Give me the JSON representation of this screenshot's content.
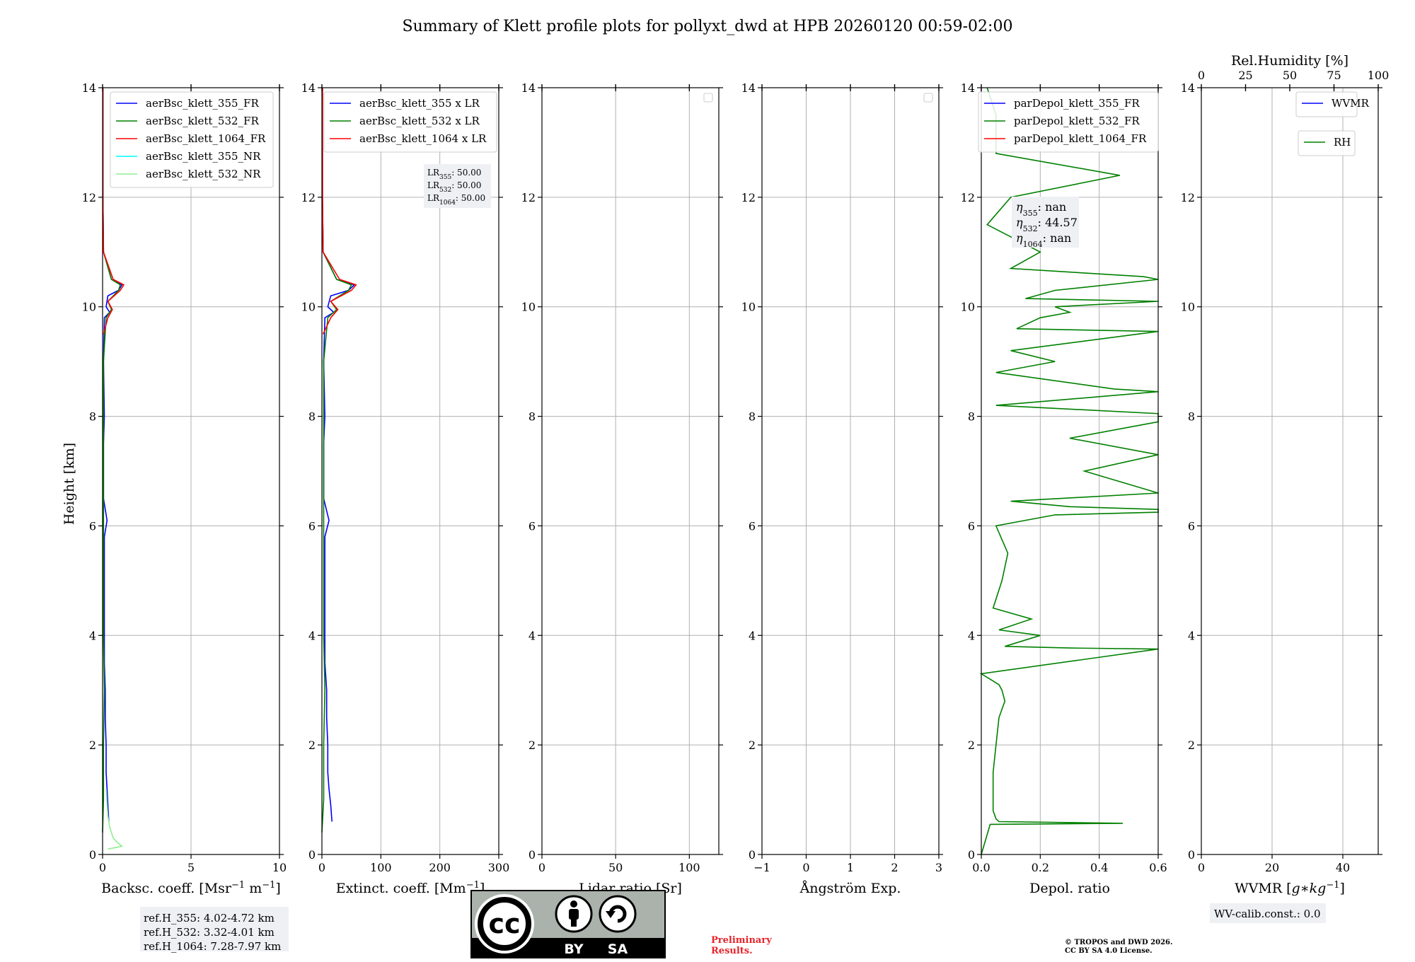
{
  "title": "Summary of Klett profile plots for pollyxt_dwd at HPB 20260120 00:59-02:00",
  "y_axis_label": "Height [km]",
  "rh_axis_label": "Rel.Humidity [%]",
  "colors": {
    "blue": "#0000ff",
    "green": "#008000",
    "red": "#ff0000",
    "cyan": "#00ffff",
    "lightgreen": "#90ee90",
    "grid": "#b0b0b0"
  },
  "info_boxes": {
    "ref_h": [
      "ref.H_355: 4.02-4.72 km",
      "ref.H_532: 3.32-4.01 km",
      "ref.H_1064: 7.28-7.97 km"
    ],
    "wv_calib": "WV-calib.const.: 0.0",
    "eta": {
      "sym": "η",
      "rows": [
        {
          "sub": "355",
          "val": ": nan"
        },
        {
          "sub": "532",
          "val": ": 44.57"
        },
        {
          "sub": "1064",
          "val": ": nan"
        }
      ]
    },
    "lr": {
      "base": "LR",
      "rows": [
        {
          "sub": "355",
          "val": ": 50.00"
        },
        {
          "sub": "532",
          "val": ": 50.00"
        },
        {
          "sub": "1064",
          "val": ": 50.00"
        }
      ]
    }
  },
  "license": {
    "badge": {
      "cc": "cc",
      "by": "BY",
      "sa": "SA"
    },
    "preliminary": [
      "Preliminary",
      "Results."
    ],
    "copyright": [
      "© TROPOS and DWD 2026.",
      "CC BY SA 4.0 License."
    ]
  },
  "chart_data": [
    {
      "type": "line",
      "xlabel": "Backsc. coeff. [Msr$^{-1}$ m$^{-1}$]",
      "xlabel_parts": {
        "base": "Backsc. coeff. [Msr",
        "sup1": "−1",
        "mid": " m",
        "sup2": "−1",
        "end": "]"
      },
      "xlim": [
        0,
        10
      ],
      "xticks": [
        0,
        5,
        10
      ],
      "ylim": [
        0,
        14
      ],
      "yticks": [
        0,
        2,
        4,
        6,
        8,
        10,
        12,
        14
      ],
      "legend": [
        "aerBsc_klett_355_FR",
        "aerBsc_klett_532_FR",
        "aerBsc_klett_1064_FR",
        "aerBsc_klett_355_NR",
        "aerBsc_klett_532_NR"
      ],
      "legend_colors": [
        "#0000ff",
        "#008000",
        "#ff0000",
        "#00ffff",
        "#90ee90"
      ],
      "series": [
        {
          "name": "aerBsc_klett_355_FR",
          "color": "#0000ff",
          "y": [
            0.6,
            0.9,
            1.2,
            1.5,
            2.0,
            2.5,
            3.0,
            3.5,
            4.0,
            5.0,
            5.8,
            6.1,
            6.5,
            7.5,
            8.0,
            9.0,
            9.8,
            9.9,
            10.0,
            10.2,
            10.3,
            10.4,
            10.5,
            11.0,
            12.0,
            14.0
          ],
          "x": [
            0.35,
            0.3,
            0.25,
            0.2,
            0.2,
            0.15,
            0.15,
            0.1,
            0.1,
            0.1,
            0.1,
            0.25,
            0.05,
            0.05,
            0.1,
            0.05,
            0.1,
            0.4,
            0.2,
            0.3,
            0.9,
            1.1,
            0.5,
            0.05,
            0.02,
            0.02
          ]
        },
        {
          "name": "aerBsc_klett_532_FR",
          "color": "#008000",
          "y": [
            0.4,
            1.0,
            2.0,
            3.0,
            4.0,
            5.0,
            6.0,
            7.0,
            8.0,
            9.0,
            9.8,
            9.95,
            10.1,
            10.3,
            10.4,
            10.5,
            11.0,
            12.0,
            14.0
          ],
          "x": [
            0.0,
            0.05,
            0.05,
            0.1,
            0.05,
            0.05,
            0.05,
            0.05,
            0.05,
            0.05,
            0.2,
            0.5,
            0.3,
            0.9,
            1.0,
            0.5,
            0.05,
            0.02,
            0.02
          ]
        },
        {
          "name": "aerBsc_klett_1064_FR",
          "color": "#ff0000",
          "y": [
            9.5,
            9.8,
            9.95,
            10.1,
            10.3,
            10.4,
            10.5,
            11.0,
            12.0,
            14.0
          ],
          "x": [
            0.05,
            0.3,
            0.55,
            0.3,
            1.0,
            1.2,
            0.6,
            0.05,
            0.02,
            0.02
          ]
        },
        {
          "name": "aerBsc_klett_532_NR",
          "color": "#90ee90",
          "y": [
            0.1,
            0.15,
            0.2,
            0.3,
            0.5,
            0.7,
            0.9,
            1.2
          ],
          "x": [
            0.3,
            1.1,
            0.9,
            0.6,
            0.4,
            0.3,
            0.25,
            0.2
          ]
        }
      ],
      "annotation": "ref_h"
    },
    {
      "type": "line",
      "xlabel": "Extinct. coeff. [Mm$^{-1}$]",
      "xlabel_parts": {
        "base": "Extinct. coeff. [Mm",
        "sup1": "−1",
        "end": "]"
      },
      "xlim": [
        0,
        300
      ],
      "xticks": [
        0,
        100,
        200,
        300
      ],
      "ylim": [
        0,
        14
      ],
      "yticks": [
        0,
        2,
        4,
        6,
        8,
        10,
        12,
        14
      ],
      "legend": [
        "aerBsc_klett_355 x LR",
        "aerBsc_klett_532 x LR",
        "aerBsc_klett_1064 x LR"
      ],
      "legend_colors": [
        "#0000ff",
        "#008000",
        "#ff0000"
      ],
      "series": [
        {
          "name": "aerBsc_klett_355 x LR",
          "color": "#0000ff",
          "y": [
            0.6,
            0.9,
            1.2,
            1.5,
            2.0,
            2.5,
            3.0,
            3.5,
            4.0,
            5.0,
            5.8,
            6.1,
            6.5,
            7.5,
            8.0,
            9.0,
            9.8,
            9.9,
            10.0,
            10.2,
            10.3,
            10.4,
            10.5,
            11.0,
            12.0,
            14.0
          ],
          "x": [
            17,
            15,
            12,
            10,
            10,
            8,
            8,
            5,
            5,
            5,
            5,
            12,
            3,
            3,
            5,
            3,
            5,
            20,
            10,
            15,
            45,
            55,
            25,
            2,
            1,
            1
          ]
        },
        {
          "name": "aerBsc_klett_532 x LR",
          "color": "#008000",
          "y": [
            0.4,
            1.0,
            2.0,
            3.0,
            4.0,
            5.0,
            6.0,
            7.0,
            8.0,
            9.0,
            9.8,
            9.95,
            10.1,
            10.3,
            10.4,
            10.5,
            11.0,
            12.0,
            14.0
          ],
          "x": [
            0,
            3,
            3,
            5,
            3,
            3,
            3,
            3,
            3,
            3,
            10,
            25,
            15,
            45,
            50,
            25,
            2,
            1,
            1
          ]
        },
        {
          "name": "aerBsc_klett_1064 x LR",
          "color": "#ff0000",
          "y": [
            9.5,
            9.8,
            9.95,
            10.1,
            10.3,
            10.4,
            10.5,
            11.0,
            12.0,
            14.0
          ],
          "x": [
            2,
            15,
            27,
            15,
            50,
            58,
            30,
            2,
            1,
            1
          ]
        }
      ],
      "annotation": "lr"
    },
    {
      "type": "line",
      "xlabel": "Lidar ratio [Sr]",
      "xlim": [
        0,
        120
      ],
      "xticks": [
        0,
        50,
        100
      ],
      "ylim": [
        0,
        14
      ],
      "yticks": [
        0,
        2,
        4,
        6,
        8,
        10,
        12,
        14
      ],
      "legend": [],
      "legend_colors": [],
      "series": [],
      "empty_legend_box": true
    },
    {
      "type": "line",
      "xlabel": "Ångström Exp.",
      "xlim": [
        -1,
        3
      ],
      "xticks": [
        -1,
        0,
        1,
        2,
        3
      ],
      "ylim": [
        0,
        14
      ],
      "yticks": [
        0,
        2,
        4,
        6,
        8,
        10,
        12,
        14
      ],
      "legend": [],
      "legend_colors": [],
      "series": [],
      "empty_legend_box": true
    },
    {
      "type": "line",
      "xlabel": "Depol. ratio",
      "xlim": [
        0.0,
        0.6
      ],
      "xticks": [
        0.0,
        0.2,
        0.4,
        0.6
      ],
      "ylim": [
        0,
        14
      ],
      "yticks": [
        0,
        2,
        4,
        6,
        8,
        10,
        12,
        14
      ],
      "legend": [
        "parDepol_klett_355_FR",
        "parDepol_klett_532_FR",
        "parDepol_klett_1064_FR"
      ],
      "legend_colors": [
        "#0000ff",
        "#008000",
        "#ff0000"
      ],
      "series": [
        {
          "name": "parDepol_klett_532_FR",
          "color": "#008000",
          "y": [
            0.0,
            0.55,
            0.57,
            0.6,
            0.65,
            0.8,
            1.0,
            1.5,
            2.0,
            2.5,
            2.8,
            3.0,
            3.1,
            3.2,
            3.3,
            3.75,
            3.77,
            3.8,
            4.0,
            4.1,
            4.3,
            4.5,
            5.0,
            5.5,
            6.0,
            6.2,
            6.25,
            6.3,
            6.35,
            6.45,
            6.6,
            7.0,
            7.3,
            7.6,
            7.9,
            8.05,
            8.2,
            8.45,
            8.5,
            8.8,
            9.0,
            9.2,
            9.55,
            9.6,
            9.8,
            9.9,
            10.0,
            10.1,
            10.15,
            10.3,
            10.5,
            10.55,
            10.7,
            11.0,
            11.5,
            12.0,
            12.4,
            12.8,
            13.5,
            14.0
          ],
          "x": [
            0.0,
            0.03,
            0.48,
            0.06,
            0.05,
            0.04,
            0.04,
            0.04,
            0.05,
            0.06,
            0.08,
            0.07,
            0.06,
            0.03,
            0.0,
            0.6,
            0.3,
            0.08,
            0.2,
            0.06,
            0.17,
            0.04,
            0.07,
            0.09,
            0.05,
            0.25,
            0.6,
            0.6,
            0.3,
            0.1,
            0.6,
            0.35,
            0.6,
            0.3,
            0.6,
            0.6,
            0.05,
            0.6,
            0.45,
            0.05,
            0.25,
            0.1,
            0.6,
            0.12,
            0.2,
            0.3,
            0.25,
            0.6,
            0.15,
            0.25,
            0.6,
            0.55,
            0.1,
            0.2,
            0.02,
            0.1,
            0.47,
            0.05,
            0.05,
            0.02
          ]
        }
      ],
      "annotation": "eta"
    },
    {
      "type": "line",
      "xlabel": "WVMR [$g*kg^{-1}$]",
      "xlabel_parts": {
        "base": "WVMR [",
        "italic": "g∗kg",
        "sup1": "−1",
        "end": "]"
      },
      "xlim": [
        0,
        50
      ],
      "xticks": [
        0,
        20,
        40
      ],
      "ylim": [
        0,
        14
      ],
      "yticks": [
        0,
        2,
        4,
        6,
        8,
        10,
        12,
        14
      ],
      "top_axis": {
        "label": "Rel.Humidity [%]",
        "xlim": [
          0,
          100
        ],
        "xticks": [
          0,
          25,
          50,
          75,
          100
        ]
      },
      "legend": [
        "WVMR"
      ],
      "legend_colors": [
        "#0000ff"
      ],
      "legend2": [
        "RH"
      ],
      "legend2_colors": [
        "#008000"
      ],
      "series": [],
      "annotation": "wv_calib"
    }
  ]
}
